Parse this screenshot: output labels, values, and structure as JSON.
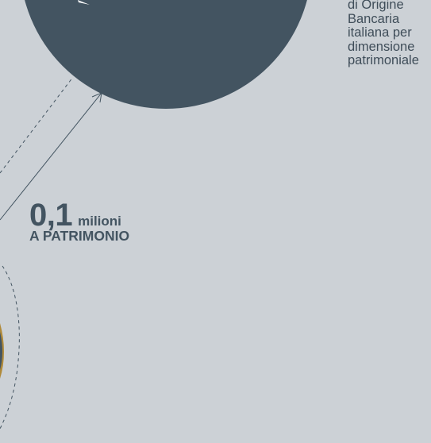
{
  "caption": {
    "lines": [
      "di Origine",
      "Bancaria",
      "italiana per",
      "dimensione",
      "patrimoniale"
    ]
  },
  "stat": {
    "value": "0,1",
    "unit": "milioni",
    "label": "A PATRIMONIO"
  },
  "colors": {
    "background": "#ccd1d6",
    "circle": "#435461",
    "accent": "#b08a3a",
    "text": "#435461"
  }
}
